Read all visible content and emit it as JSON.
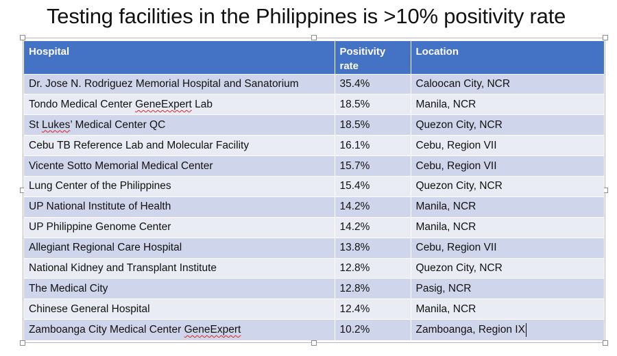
{
  "slide": {
    "title": "Testing facilities in the Philippines is >10% positivity rate"
  },
  "table": {
    "headers": [
      "Hospital",
      "Positivity rate",
      "Location"
    ],
    "rows": [
      {
        "hospital": "Dr. Jose N. Rodriguez Memorial Hospital and Sanatorium",
        "rate": "35.4%",
        "location": "Caloocan City, NCR"
      },
      {
        "hospital_parts": [
          "Tondo Medical Center ",
          "GeneExpert",
          " Lab"
        ],
        "rate": "18.5%",
        "location": "Manila, NCR"
      },
      {
        "hospital_parts": [
          "St ",
          "Lukes",
          "’ Medical Center QC"
        ],
        "rate": "18.5%",
        "location": "Quezon City, NCR"
      },
      {
        "hospital": "Cebu TB Reference Lab and Molecular Facility",
        "rate": "16.1%",
        "location": "Cebu, Region VII"
      },
      {
        "hospital": "Vicente Sotto Memorial Medical Center",
        "rate": "15.7%",
        "location": "Cebu, Region VII"
      },
      {
        "hospital": "Lung Center of the Philippines",
        "rate": "15.4%",
        "location": "Quezon City, NCR"
      },
      {
        "hospital": "UP National Institute of Health",
        "rate": "14.2%",
        "location": "Manila, NCR"
      },
      {
        "hospital": "UP Philippine Genome Center",
        "rate": "14.2%",
        "location": "Manila, NCR"
      },
      {
        "hospital": "Allegiant Regional Care Hospital",
        "rate": "13.8%",
        "location": "Cebu, Region VII"
      },
      {
        "hospital": "National Kidney and Transplant Institute",
        "rate": "12.8%",
        "location": "Quezon City, NCR"
      },
      {
        "hospital": "The Medical City",
        "rate": "12.8%",
        "location": "Pasig, NCR"
      },
      {
        "hospital": "Chinese General Hospital",
        "rate": "12.4%",
        "location": "Manila, NCR"
      },
      {
        "hospital_parts": [
          "Zamboanga City Medical Center ",
          "GeneExpert",
          ""
        ],
        "rate": "10.2%",
        "location": "Zamboanga, Region IX"
      }
    ]
  },
  "colors": {
    "header_bg": "#4472c4",
    "row_odd": "#cfd5ea",
    "row_even": "#e9ebf5",
    "spellcheck": "#e02020"
  }
}
